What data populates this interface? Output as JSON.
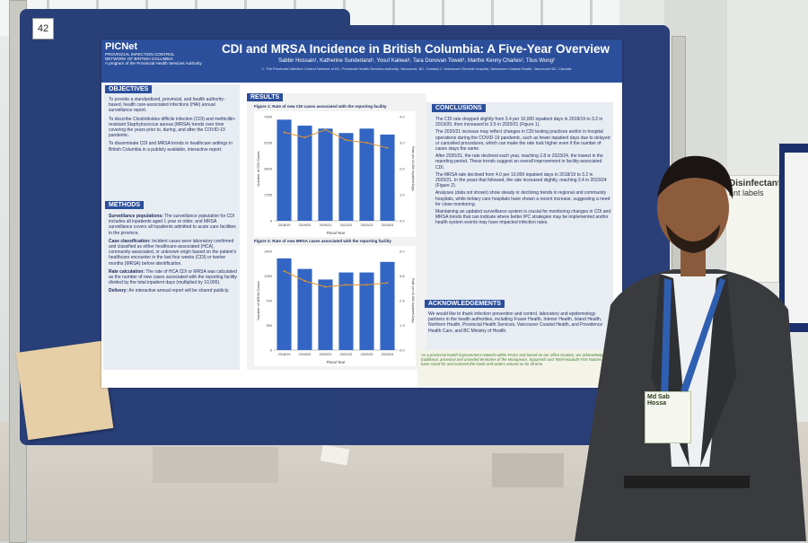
{
  "booth_number": "42",
  "poster": {
    "logo": {
      "name": "PICNet",
      "sub1": "PROVINCIAL INFECTION CONTROL",
      "sub2": "NETWORK OF BRITISH COLUMBIA",
      "sub3": "A program of the Provincial Health Services Authority"
    },
    "title": "CDI and MRSA Incidence in British Columbia: A Five-Year Overview",
    "authors": "Sabbir Hossain¹, Katherine Sunderland¹, Yosuf Kaliwal¹, Tara Donovan Towell¹, Marthe Kenny Charles², Titus Wong²",
    "affiliations": "1. The Provincial Infection Control Network of BC, Provincial Health Services Authority, Vancouver, BC, Canada   2. Vancouver General Hospital, Vancouver Coastal Health, Vancouver BC, Canada",
    "objectives": {
      "heading": "OBJECTIVES",
      "items": [
        "To provide a standardized, provincial, and health authority-based, health care-associated infections (HAI) annual surveillance report.",
        "To describe Clostridioides difficile infection (CDI) and methicillin-resistant Staphylococcus aureus (MRSA) trends over time covering the years prior to, during, and after the COVID-19 pandemic.",
        "To disseminate CDI and MRSA trends in healthcare settings in British Columbia in a publicly available, interactive report."
      ]
    },
    "methods": {
      "heading": "METHODS",
      "items": [
        {
          "label": "Surveillance populations:",
          "text": "The surveillance population for CDI includes all inpatients aged 1 year or older, and MRSA surveillance covers all inpatients admitted to acute care facilities in the province."
        },
        {
          "label": "Case classification:",
          "text": "Incident cases were laboratory confirmed and classified as either healthcare-associated (HCA), community-associated, or unknown origin based on the patient's healthcare encounter in the last four weeks (CDI) or twelve months (MRSA) before identification."
        },
        {
          "label": "Rate calculation:",
          "text": "The rate of HCA CDI or MRSA was calculated as the number of new cases associated with the reporting facility divided by the total inpatient days (multiplied by 10,000)."
        },
        {
          "label": "Delivery:",
          "text": "An interactive annual report will be shared publicly."
        }
      ]
    },
    "results": {
      "heading": "RESULTS",
      "figure1_caption": "Figure 1: Rate of new CDI cases associated with the reporting facility",
      "figure2_caption": "Figure 2: Rate of new MRSA cases associated with the reporting facility"
    },
    "conclusions": {
      "heading": "CONCLUSIONS",
      "items": [
        "The CDI rate dropped slightly from 3.4 per 10,000 inpatient days in 2018/19 to 3.2 in 2019/20, then increased to 3.5 in 2020/21 (Figure 1).",
        "The 2020/21 increase may reflect changes in CDI testing practices and/or in hospital operations during the COVID-19 pandemic, such as fewer inpatient days due to delayed or cancelled procedures, which can make the rate look higher even if the number of cases stays the same.",
        "After 2020/21, the rate declined each year, reaching 2.8 in 2023/24, the lowest in the reporting period. These trends suggest an overall improvement in facility-associated CDI.",
        "The MRSA rate declined from 4.0 per 10,000 inpatient days in 2018/19 to 3.2 in 2020/21. In the years that followed, the rate increased slightly, reaching 3.4 in 2023/24 (Figure 2).",
        "Analyses (data not shown) show steady or declining trends in regional and community hospitals, while tertiary care hospitals have shown a recent increase, suggesting a need for close monitoring.",
        "Maintaining an updated surveillance system is crucial for monitoring changes in CDI and MRSA trends that can indicate where better IPC strategies may be implemented and/or health system events may have impacted infection rates."
      ]
    },
    "acknowledgements": {
      "heading": "ACKNOWLEDGEMENTS",
      "text": "We would like to thank infection prevention and control, laboratory and epidemiology partners in the health authorities, including Fraser Health, Interior Health, Island Health, Northern Health, Provincial Health Services, Vancouver Coastal Health, and Providence Health Care, and BC Ministry of Health."
    },
    "footer": "As a provincial health improvement network within PHSA and based on our office location, we acknowledge the traditional, ancestral and unceded territories of the Musqueam, Squamish and Tsleil-Waututh First Nations who have cared for and nurtured the lands and waters around us for all time."
  },
  "chart_data": [
    {
      "type": "bar",
      "title": "Figure 1: Rate of new CDI cases associated with the reporting facility",
      "categories": [
        "2018/19",
        "2019/20",
        "2020/21",
        "2021/22",
        "2022/23",
        "2023/24"
      ],
      "series": [
        {
          "name": "Number of CDI Cases",
          "values": [
            6800,
            6400,
            6200,
            5900,
            6200,
            5800
          ]
        },
        {
          "name": "Rate per 10,000 inpatient days",
          "values": [
            3.4,
            3.2,
            3.5,
            3.1,
            3.0,
            2.8
          ]
        }
      ],
      "xlabel": "Fiscal Year",
      "ylabel": "Number of CDI Cases",
      "y2label": "Rate per 10,000 Inpatient Days",
      "ylim": [
        0,
        7000
      ],
      "y2lim": [
        0,
        4
      ]
    },
    {
      "type": "bar",
      "title": "Figure 2: Rate of new MRSA cases associated with the reporting facility",
      "categories": [
        "2018/19",
        "2019/20",
        "2020/21",
        "2021/22",
        "2022/23",
        "2023/24"
      ],
      "series": [
        {
          "name": "Number of MRSA Cases",
          "values": [
            1300,
            1150,
            1000,
            1100,
            1100,
            1250
          ]
        },
        {
          "name": "Rate per 10,000 inpatient days",
          "values": [
            4.0,
            3.5,
            3.2,
            3.3,
            3.3,
            3.4
          ]
        }
      ],
      "xlabel": "Fiscal Year",
      "ylabel": "Number of MRSA Cases",
      "y2label": "Rate per 10,000 Inpatient Days",
      "ylim": [
        0,
        1400
      ],
      "y2lim": [
        0,
        5
      ]
    }
  ],
  "right_sign": {
    "title": "Disinfectant",
    "line2": "ant labels"
  },
  "badge": {
    "line1": "Md Sab",
    "line2": "Hossa"
  }
}
